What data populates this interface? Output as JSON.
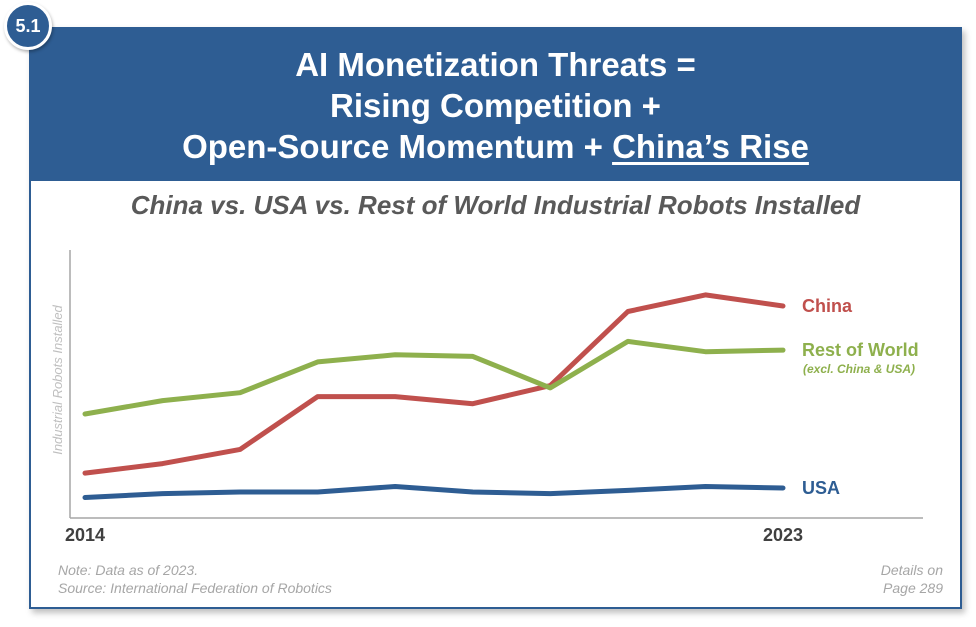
{
  "badge": "5.1",
  "header": {
    "line1": "AI Monetization Threats =",
    "line2": "Rising Competition +",
    "line3_prefix": "Open-Source Momentum + ",
    "line3_underlined": "China’s Rise"
  },
  "colors": {
    "brand": "#2e5d93",
    "china": "#c0504d",
    "rest_of_world": "#8eb04d",
    "usa": "#2e5d93"
  },
  "chart_data": {
    "type": "line",
    "title": "China vs. USA vs. Rest of World Industrial Robots Installed",
    "ylabel": "Industrial Robots Installed",
    "x_tick_labels": [
      "2014",
      "2023"
    ],
    "x": [
      2014,
      2015,
      2016,
      2017,
      2018,
      2019,
      2020,
      2021,
      2022,
      2023
    ],
    "ylim": [
      0,
      340
    ],
    "grid": false,
    "series": [
      {
        "name": "China",
        "color": "#c0504d",
        "values": [
          57,
          69,
          87,
          154,
          154,
          145,
          168,
          262,
          283,
          269
        ]
      },
      {
        "name": "Rest of World",
        "sublabel": "(excl. China & USA)",
        "color": "#8eb04d",
        "values": [
          132,
          149,
          159,
          198,
          207,
          205,
          165,
          224,
          211,
          213
        ]
      },
      {
        "name": "USA",
        "color": "#2e5d93",
        "values": [
          26,
          31,
          33,
          33,
          40,
          33,
          31,
          35,
          40,
          38
        ]
      }
    ]
  },
  "footer": {
    "note": "Note: Data as of 2023.",
    "source": "Source: International Federation of Robotics",
    "details_line1": "Details on",
    "details_line2": "Page 289"
  }
}
